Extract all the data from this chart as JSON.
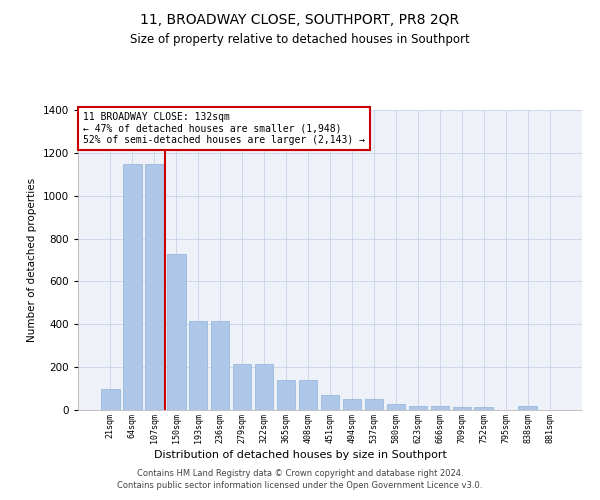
{
  "title": "11, BROADWAY CLOSE, SOUTHPORT, PR8 2QR",
  "subtitle": "Size of property relative to detached houses in Southport",
  "xlabel": "Distribution of detached houses by size in Southport",
  "ylabel": "Number of detached properties",
  "categories": [
    "21sqm",
    "64sqm",
    "107sqm",
    "150sqm",
    "193sqm",
    "236sqm",
    "279sqm",
    "322sqm",
    "365sqm",
    "408sqm",
    "451sqm",
    "494sqm",
    "537sqm",
    "580sqm",
    "623sqm",
    "666sqm",
    "709sqm",
    "752sqm",
    "795sqm",
    "838sqm",
    "881sqm"
  ],
  "values": [
    100,
    1150,
    1150,
    730,
    415,
    415,
    215,
    215,
    140,
    140,
    70,
    50,
    50,
    30,
    20,
    20,
    15,
    15,
    0,
    20,
    0
  ],
  "bar_color": "#aec6e8",
  "bar_edge_color": "#8ab4d8",
  "vline_color": "#cc0000",
  "annotation_text": "11 BROADWAY CLOSE: 132sqm\n← 47% of detached houses are smaller (1,948)\n52% of semi-detached houses are larger (2,143) →",
  "annotation_box_color": "#ffffff",
  "annotation_box_edge": "#cc0000",
  "ylim": [
    0,
    1400
  ],
  "yticks": [
    0,
    200,
    400,
    600,
    800,
    1000,
    1200,
    1400
  ],
  "background_color": "#eef2f8",
  "footer_line1": "Contains HM Land Registry data © Crown copyright and database right 2024.",
  "footer_line2": "Contains public sector information licensed under the Open Government Licence v3.0."
}
